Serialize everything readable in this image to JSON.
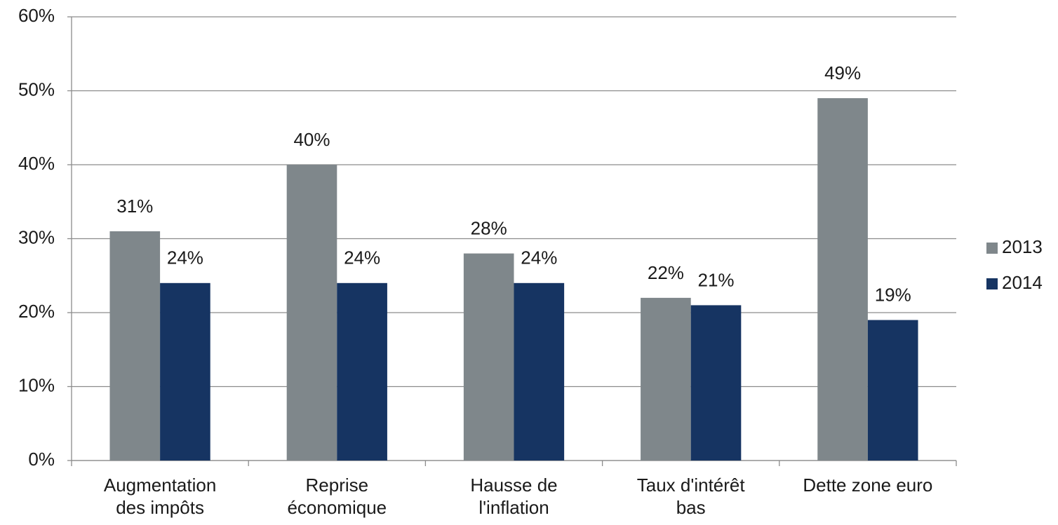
{
  "chart_data": {
    "type": "bar",
    "categories": [
      "Augmentation\ndes impôts",
      "Reprise\néconomique",
      "Hausse de\nl'inflation",
      "Taux d'intérêt\nbas",
      "Dette zone euro"
    ],
    "series": [
      {
        "name": "2013",
        "color": "#7f878b",
        "values": [
          31,
          40,
          28,
          22,
          49
        ],
        "value_labels": [
          "31%",
          "40%",
          "28%",
          "22%",
          "49%"
        ]
      },
      {
        "name": "2014",
        "color": "#163462",
        "values": [
          24,
          24,
          24,
          21,
          19
        ],
        "value_labels": [
          "24%",
          "24%",
          "24%",
          "21%",
          "19%"
        ]
      }
    ],
    "ylim": [
      0,
      60
    ],
    "yticks": [
      {
        "value": 0,
        "label": "0%"
      },
      {
        "value": 10,
        "label": "10%"
      },
      {
        "value": 20,
        "label": "20%"
      },
      {
        "value": 30,
        "label": "30%"
      },
      {
        "value": 40,
        "label": "40%"
      },
      {
        "value": 50,
        "label": "50%"
      },
      {
        "value": 60,
        "label": "60%"
      }
    ],
    "grid": true,
    "legend": "right"
  }
}
